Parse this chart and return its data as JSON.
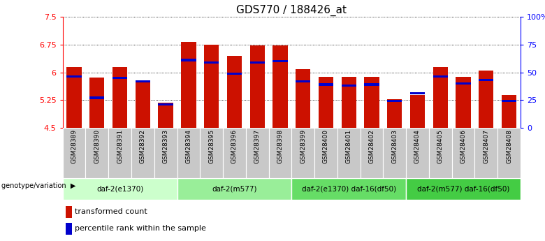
{
  "title": "GDS770 / 188426_at",
  "samples": [
    "GSM28389",
    "GSM28390",
    "GSM28391",
    "GSM28392",
    "GSM28393",
    "GSM28394",
    "GSM28395",
    "GSM28396",
    "GSM28397",
    "GSM28398",
    "GSM28399",
    "GSM28400",
    "GSM28401",
    "GSM28402",
    "GSM28403",
    "GSM28404",
    "GSM28405",
    "GSM28406",
    "GSM28407",
    "GSM28408"
  ],
  "transformed_count": [
    6.15,
    5.85,
    6.15,
    5.78,
    5.18,
    6.82,
    6.75,
    6.45,
    6.73,
    6.73,
    6.08,
    5.88,
    5.88,
    5.88,
    5.28,
    5.38,
    6.15,
    5.88,
    6.05,
    5.38
  ],
  "percentile_rank_pct": [
    47,
    28,
    46,
    43,
    22,
    62,
    60,
    50,
    60,
    61,
    43,
    40,
    39,
    40,
    25,
    32,
    47,
    41,
    44,
    25
  ],
  "bar_color": "#cc1100",
  "blue_color": "#0000cc",
  "ymin": 4.5,
  "ymax": 7.5,
  "yticks": [
    4.5,
    5.25,
    6.0,
    6.75,
    7.5
  ],
  "ytick_labels": [
    "4.5",
    "5.25",
    "6",
    "6.75",
    "7.5"
  ],
  "right_yticks": [
    0,
    25,
    50,
    75,
    100
  ],
  "right_ytick_labels": [
    "0",
    "25",
    "50",
    "75",
    "100%"
  ],
  "groups": [
    {
      "label": "daf-2(e1370)",
      "start": 0,
      "end": 5,
      "color": "#ccffcc"
    },
    {
      "label": "daf-2(m577)",
      "start": 5,
      "end": 10,
      "color": "#99ee99"
    },
    {
      "label": "daf-2(e1370) daf-16(df50)",
      "start": 10,
      "end": 15,
      "color": "#66dd66"
    },
    {
      "label": "daf-2(m577) daf-16(df50)",
      "start": 15,
      "end": 20,
      "color": "#44cc44"
    }
  ],
  "genotype_label": "genotype/variation",
  "legend_items": [
    {
      "label": "transformed count",
      "color": "#cc1100"
    },
    {
      "label": "percentile rank within the sample",
      "color": "#0000cc"
    }
  ],
  "bar_width": 0.65,
  "title_fontsize": 11,
  "tick_fontsize": 8,
  "group_fontsize": 7.5,
  "sample_fontsize": 6.5
}
